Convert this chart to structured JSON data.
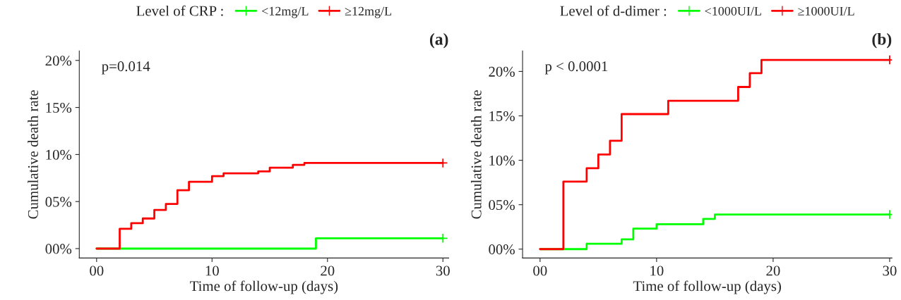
{
  "chart_data": [
    {
      "type": "step",
      "legend_title": "Level of CRP :",
      "ylabel": "Cumulative death rate",
      "xlabel": "Time of follow-up (days)",
      "annotations": [
        "p=0.014",
        "(a)"
      ],
      "legend": "top",
      "grid": false,
      "xlim": [
        -1.5,
        30.5
      ],
      "xticks": [
        {
          "value": 0,
          "label": "00"
        },
        10,
        20,
        30
      ],
      "ylim": [
        -1,
        21
      ],
      "yticks": [
        {
          "value": 0,
          "label": "00%"
        },
        {
          "value": 5,
          "label": "05%"
        },
        {
          "value": 10,
          "label": "10%"
        },
        {
          "value": 15,
          "label": "15%"
        },
        {
          "value": 20,
          "label": "20%"
        }
      ],
      "series": [
        {
          "name": "<12mg/L",
          "color": "#00ff00",
          "x": [
            0,
            19,
            30
          ],
          "values": [
            0,
            1.1,
            1.1
          ]
        },
        {
          "name": "≥12mg/L",
          "color": "#ff0000",
          "x": [
            0,
            2,
            3,
            4,
            5,
            6,
            7,
            8,
            10,
            11,
            14,
            15,
            17,
            18,
            30
          ],
          "values": [
            0,
            2.1,
            2.7,
            3.2,
            4.1,
            4.75,
            6.2,
            7.1,
            7.7,
            8.0,
            8.2,
            8.6,
            8.9,
            9.1,
            9.1
          ]
        },
        {
          "type": "scatter",
          "marker": "cross",
          "color": "#00ff00",
          "x": [
            30
          ],
          "values": [
            1.1
          ]
        },
        {
          "type": "scatter",
          "marker": "cross",
          "color": "#ff0000",
          "x": [
            30
          ],
          "values": [
            9.1
          ]
        }
      ]
    },
    {
      "type": "step",
      "legend_title": "Level of d-dimer :",
      "ylabel": "Cumulative death rate",
      "xlabel": "Time of follow-up (days)",
      "annotations": [
        "p < 0.0001",
        "(b)"
      ],
      "legend": "top",
      "grid": false,
      "xlim": [
        -1.5,
        30.2
      ],
      "xticks": [
        {
          "value": 0,
          "label": "00"
        },
        10,
        20,
        30
      ],
      "ylim": [
        -1,
        22.3
      ],
      "yticks": [
        {
          "value": 0,
          "label": "00%"
        },
        {
          "value": 5,
          "label": "05%"
        },
        {
          "value": 10,
          "label": "10%"
        },
        {
          "value": 15,
          "label": "15%"
        },
        {
          "value": 20,
          "label": "20%"
        }
      ],
      "series": [
        {
          "name": "<1000UI/L",
          "color": "#00ff00",
          "x": [
            0,
            4,
            7,
            8,
            10,
            14,
            15,
            30
          ],
          "values": [
            0,
            0.6,
            1.1,
            2.3,
            2.8,
            3.4,
            3.9,
            3.9
          ]
        },
        {
          "name": "≥1000UI/L",
          "color": "#ff0000",
          "x": [
            0,
            2,
            4,
            5,
            6,
            7,
            11,
            17,
            18,
            19,
            30
          ],
          "values": [
            0,
            7.6,
            9.1,
            10.65,
            12.2,
            15.2,
            16.7,
            18.25,
            19.8,
            21.3,
            21.3
          ]
        },
        {
          "type": "scatter",
          "marker": "cross",
          "color": "#00ff00",
          "x": [
            30
          ],
          "values": [
            3.9
          ]
        },
        {
          "type": "scatter",
          "marker": "cross",
          "color": "#ff0000",
          "x": [
            30
          ],
          "values": [
            21.3
          ]
        }
      ]
    }
  ]
}
